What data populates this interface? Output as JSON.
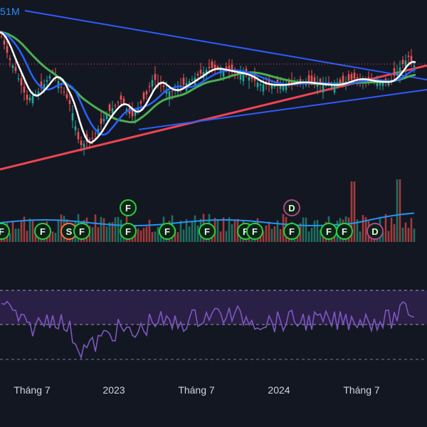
{
  "header": {
    "volume_label": "51M"
  },
  "colors": {
    "background": "#131722",
    "up_candle": "#26a69a",
    "down_candle": "#ef5350",
    "ma_short": "#ffffff",
    "ma_mid": "#2962ff",
    "ma_long": "#4caf50",
    "trend_lower": "#ef4451",
    "trend_upper": "#2f5bff",
    "volume_ma": "#2196f3",
    "rsi_line": "#7e57c2",
    "rsi_band": "#2a1f45",
    "event_f": "#2ecc40",
    "event_d": "#b0478a",
    "resistance_dots": "#ef5350"
  },
  "chart_data": {
    "type": "candlestick",
    "x_ticks": [
      "Tháng 7",
      "2023",
      "Tháng 7",
      "2024",
      "Tháng 7"
    ],
    "legend_placement": "none",
    "grid": false,
    "price_panel": {
      "moving_averages": [
        "ma_short",
        "ma_mid",
        "ma_long"
      ],
      "trendlines": [
        "trend_lower",
        "trend_upper_descending",
        "trend_upper_ascending"
      ],
      "horizontal_dotted_line": true
    },
    "volume_panel": {
      "visible_label": "51M",
      "events": [
        {
          "type": "F",
          "label": "F"
        },
        {
          "type": "F",
          "label": "F"
        },
        {
          "type": "S",
          "label": "S"
        },
        {
          "type": "F",
          "label": "F"
        },
        {
          "type": "F",
          "label": "F"
        },
        {
          "type": "F",
          "label": "F"
        },
        {
          "type": "F",
          "label": "F"
        },
        {
          "type": "F",
          "label": "F"
        },
        {
          "type": "F",
          "label": "F"
        },
        {
          "type": "D",
          "label": "D"
        },
        {
          "type": "F",
          "label": "F"
        },
        {
          "type": "F",
          "label": "F"
        },
        {
          "type": "F",
          "label": "F"
        },
        {
          "type": "D",
          "label": "D"
        },
        {
          "type": "F",
          "label": "F"
        }
      ]
    },
    "rsi_panel": {
      "upper_band": 70,
      "lower_band": 30,
      "range": [
        0,
        100
      ]
    }
  }
}
